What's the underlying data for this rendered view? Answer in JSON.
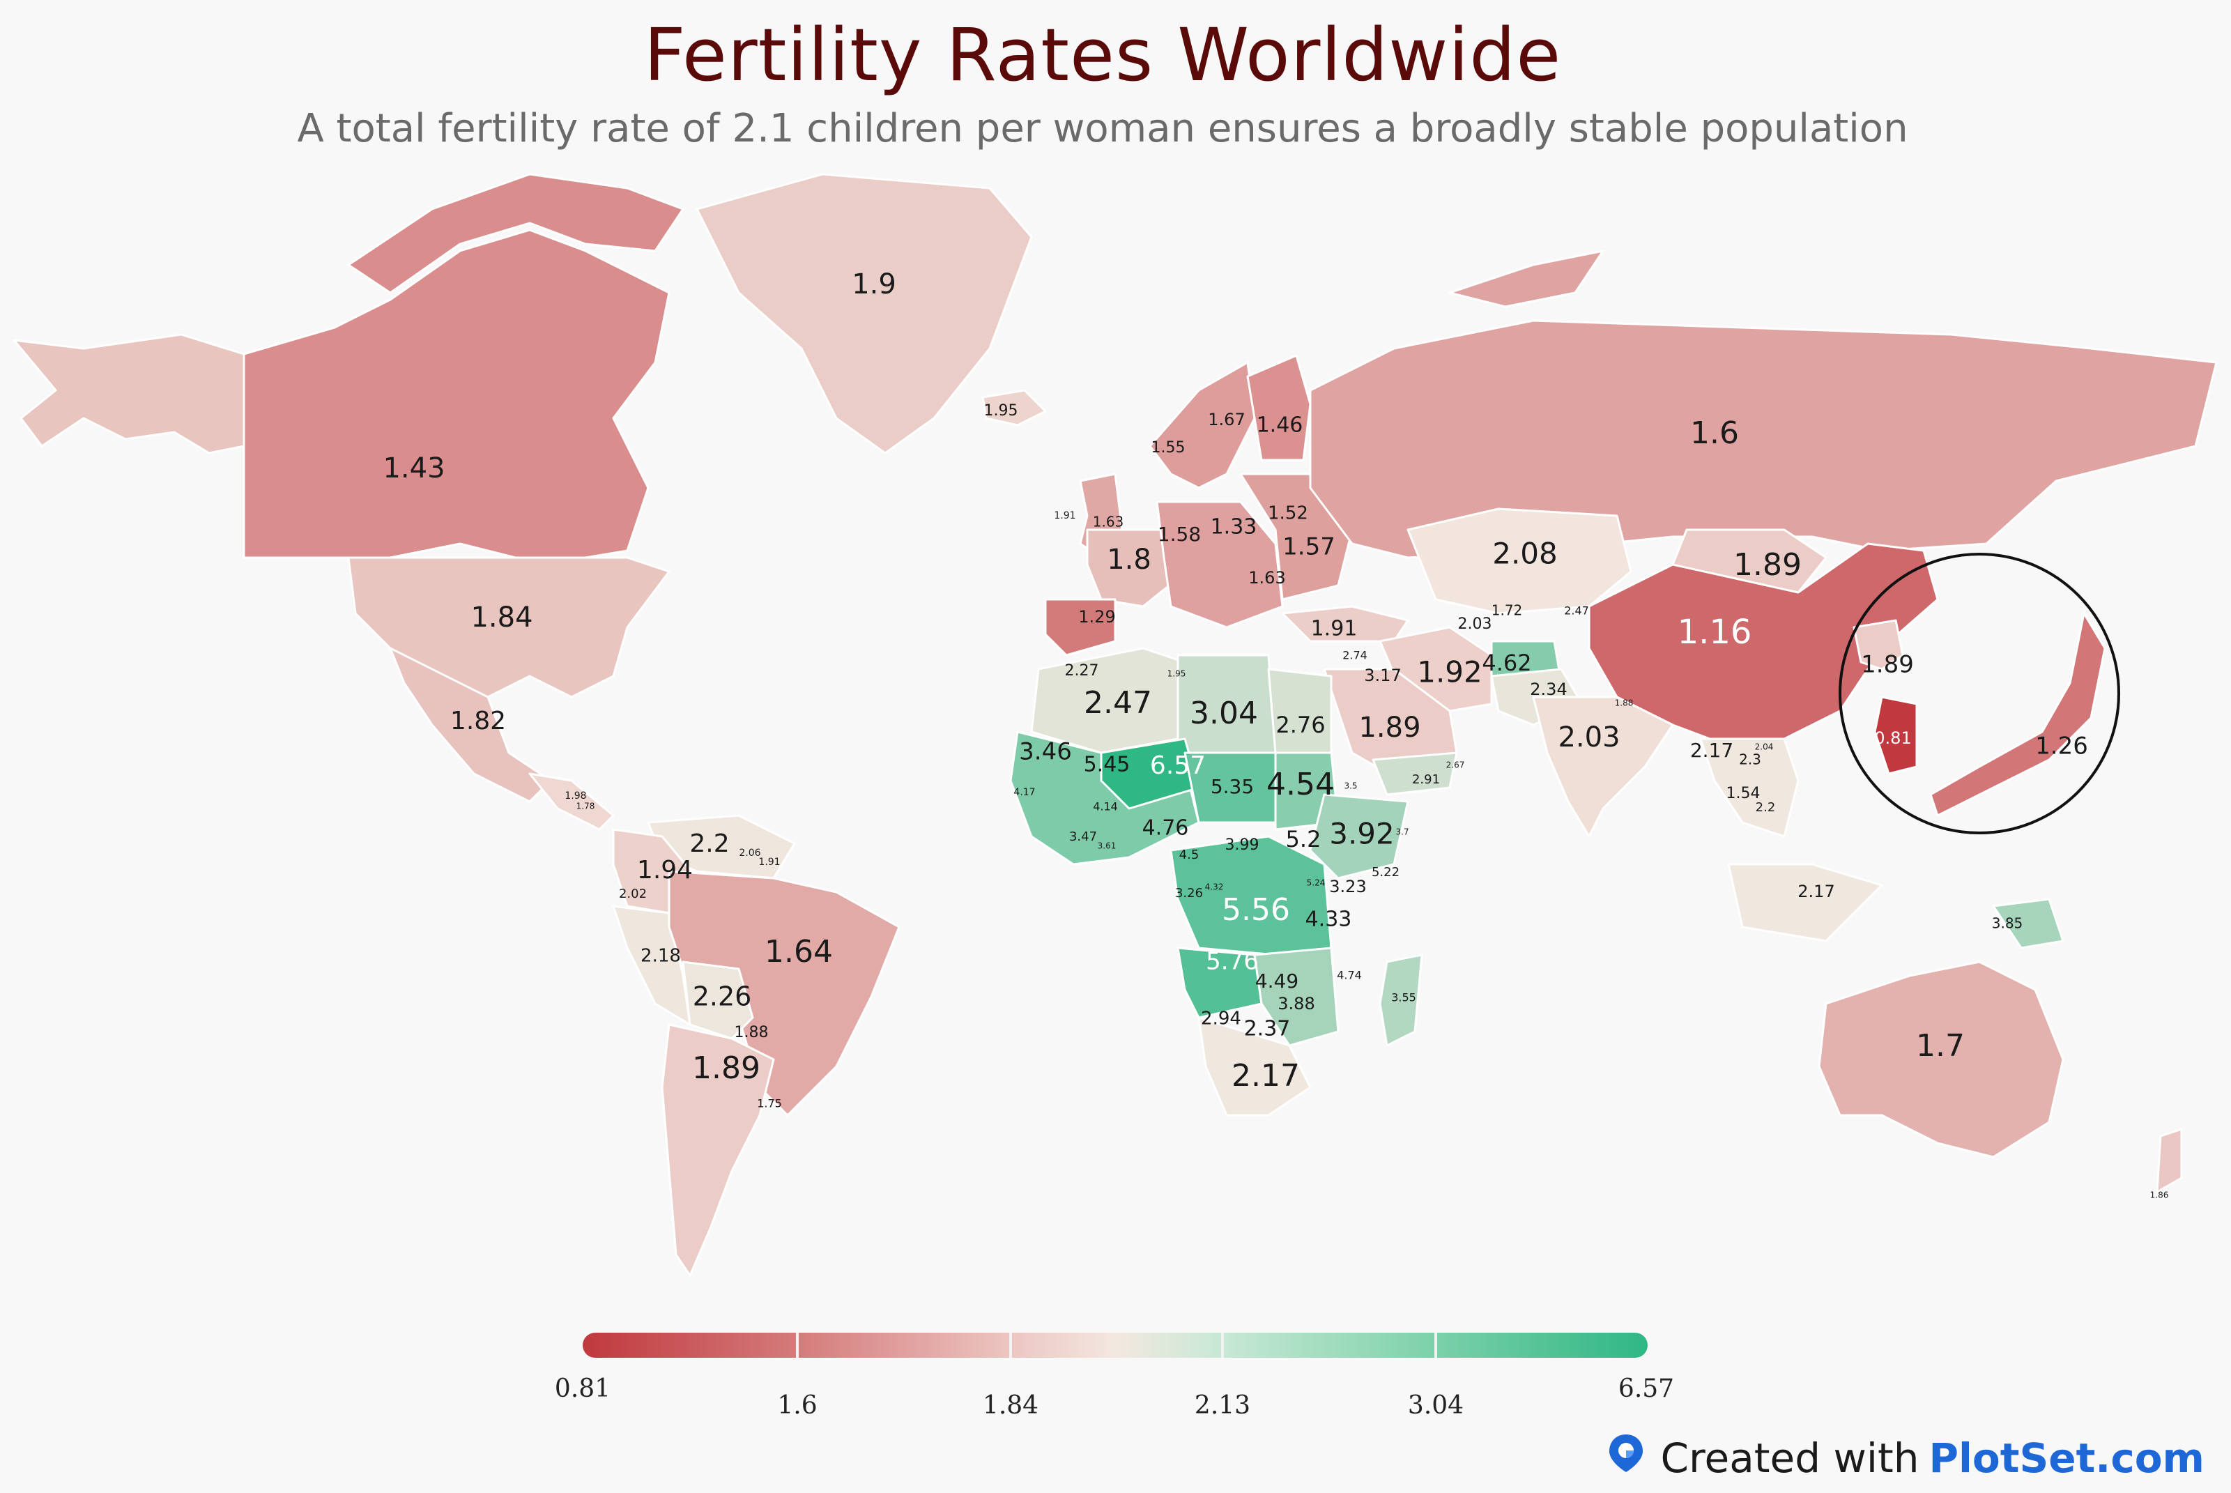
{
  "title": "Fertility Rates Worldwide",
  "subtitle": "A total fertility rate of 2.1 children per woman ensures a broadly stable population",
  "colors": {
    "low": "#c0393e",
    "mid": "#f3e8e0",
    "high": "#2fb784"
  },
  "legend": {
    "ticks": [
      "0.81",
      "1.6",
      "1.84",
      "2.13",
      "3.04",
      "6.57"
    ]
  },
  "footer": {
    "prefix": "Created with",
    "brand": "PlotSet.com",
    "icon": "plotset-logo-icon"
  },
  "regions": [
    {
      "id": "alaska",
      "value": 1.84
    },
    {
      "id": "canada",
      "value": 1.43
    },
    {
      "id": "greenland",
      "value": 1.9
    },
    {
      "id": "iceland",
      "value": 1.95
    },
    {
      "id": "usa",
      "value": 1.84
    },
    {
      "id": "mexico",
      "value": 1.82
    },
    {
      "id": "central-america",
      "value": 1.98
    },
    {
      "id": "venezuela",
      "value": 2.2
    },
    {
      "id": "colombia",
      "value": 1.94
    },
    {
      "id": "peru",
      "value": 2.18
    },
    {
      "id": "brazil",
      "value": 1.64
    },
    {
      "id": "bolivia",
      "value": 2.26
    },
    {
      "id": "argentina",
      "value": 1.89
    },
    {
      "id": "uk",
      "value": 1.63
    },
    {
      "id": "france",
      "value": 1.8
    },
    {
      "id": "spain",
      "value": 1.29
    },
    {
      "id": "scandinavia",
      "value": 1.55
    },
    {
      "id": "finland",
      "value": 1.46
    },
    {
      "id": "central-europe",
      "value": 1.58
    },
    {
      "id": "eastern-europe",
      "value": 1.57
    },
    {
      "id": "russia",
      "value": 1.6
    },
    {
      "id": "turkey",
      "value": 1.91
    },
    {
      "id": "kazakhstan",
      "value": 2.08
    },
    {
      "id": "mongolia",
      "value": 1.89
    },
    {
      "id": "china",
      "value": 1.16
    },
    {
      "id": "korea",
      "value": 1.89
    },
    {
      "id": "south-korea",
      "value": 0.81
    },
    {
      "id": "japan",
      "value": 1.26
    },
    {
      "id": "iran",
      "value": 1.92
    },
    {
      "id": "afghanistan",
      "value": 4.62
    },
    {
      "id": "pakistan",
      "value": 2.34
    },
    {
      "id": "india",
      "value": 2.03
    },
    {
      "id": "saudi-arabia",
      "value": 1.89
    },
    {
      "id": "yemen",
      "value": 2.91
    },
    {
      "id": "se-asia",
      "value": 2.17
    },
    {
      "id": "indonesia",
      "value": 2.17
    },
    {
      "id": "papua",
      "value": 3.85
    },
    {
      "id": "australia",
      "value": 1.7
    },
    {
      "id": "new-zealand",
      "value": 1.86
    },
    {
      "id": "north-africa-west",
      "value": 2.47
    },
    {
      "id": "north-africa-east",
      "value": 3.04
    },
    {
      "id": "egypt",
      "value": 2.76
    },
    {
      "id": "west-africa",
      "value": 4.76
    },
    {
      "id": "sahel",
      "value": 5.35
    },
    {
      "id": "niger",
      "value": 6.57
    },
    {
      "id": "east-africa",
      "value": 4.54
    },
    {
      "id": "horn",
      "value": 3.92
    },
    {
      "id": "congo",
      "value": 5.56
    },
    {
      "id": "angola",
      "value": 5.76
    },
    {
      "id": "southern-africa",
      "value": 2.17
    },
    {
      "id": "mozambique",
      "value": 3.88
    },
    {
      "id": "madagascar",
      "value": 3.55
    }
  ],
  "labels": [
    {
      "text": "1.9",
      "size": 40
    },
    {
      "text": "1.95",
      "size": 22
    },
    {
      "text": "1.43",
      "size": 40
    },
    {
      "text": "1.84",
      "size": 40
    },
    {
      "text": "1.82",
      "size": 36
    },
    {
      "text": "1.98",
      "size": 14
    },
    {
      "text": "1.78",
      "size": 12
    },
    {
      "text": "2.2",
      "size": 36
    },
    {
      "text": "2.06",
      "size": 14
    },
    {
      "text": "1.91",
      "size": 14
    },
    {
      "text": "1.94",
      "size": 36
    },
    {
      "text": "2.02",
      "size": 18
    },
    {
      "text": "2.18",
      "size": 26
    },
    {
      "text": "1.64",
      "size": 44
    },
    {
      "text": "2.26",
      "size": 38
    },
    {
      "text": "1.88",
      "size": 22
    },
    {
      "text": "1.89",
      "size": 44
    },
    {
      "text": "1.75",
      "size": 16
    },
    {
      "text": "1.55",
      "size": 22
    },
    {
      "text": "1.67",
      "size": 24
    },
    {
      "text": "1.46",
      "size": 30
    },
    {
      "text": "1.91",
      "size": 14
    },
    {
      "text": "1.63",
      "size": 20
    },
    {
      "text": "1.8",
      "size": 40
    },
    {
      "text": "1.29",
      "size": 24
    },
    {
      "text": "1.58",
      "size": 28
    },
    {
      "text": "1.33",
      "size": 30
    },
    {
      "text": "1.52",
      "size": 26
    },
    {
      "text": "1.57",
      "size": 34
    },
    {
      "text": "1.63",
      "size": 24
    },
    {
      "text": "1.6",
      "size": 44
    },
    {
      "text": "2.08",
      "size": 42
    },
    {
      "text": "1.89",
      "size": 44
    },
    {
      "text": "1.16",
      "size": 48
    },
    {
      "text": "1.89",
      "size": 34
    },
    {
      "text": "0.81",
      "size": 24
    },
    {
      "text": "1.26",
      "size": 34
    },
    {
      "text": "1.91",
      "size": 30
    },
    {
      "text": "2.03",
      "size": 22
    },
    {
      "text": "1.72",
      "size": 20
    },
    {
      "text": "2.47",
      "size": 16
    },
    {
      "text": "2.74",
      "size": 16
    },
    {
      "text": "3.17",
      "size": 24
    },
    {
      "text": "1.92",
      "size": 42
    },
    {
      "text": "4.62",
      "size": 32
    },
    {
      "text": "2.34",
      "size": 24
    },
    {
      "text": "2.27",
      "size": 22
    },
    {
      "text": "1.95",
      "size": 12
    },
    {
      "text": "2.47",
      "size": 44
    },
    {
      "text": "3.04",
      "size": 44
    },
    {
      "text": "2.76",
      "size": 32
    },
    {
      "text": "1.89",
      "size": 40
    },
    {
      "text": "2.91",
      "size": 18
    },
    {
      "text": "2.67",
      "size": 12
    },
    {
      "text": "2.03",
      "size": 40
    },
    {
      "text": "1.88",
      "size": 12
    },
    {
      "text": "2.17",
      "size": 28
    },
    {
      "text": "2.04",
      "size": 12
    },
    {
      "text": "2.3",
      "size": 20
    },
    {
      "text": "1.54",
      "size": 22
    },
    {
      "text": "2.2",
      "size": 18
    },
    {
      "text": "3.46",
      "size": 34
    },
    {
      "text": "5.45",
      "size": 30
    },
    {
      "text": "6.57",
      "size": 36
    },
    {
      "text": "5.35",
      "size": 28
    },
    {
      "text": "4.54",
      "size": 44
    },
    {
      "text": "3.5",
      "size": 12
    },
    {
      "text": "4.17",
      "size": 14
    },
    {
      "text": "4.14",
      "size": 16
    },
    {
      "text": "4.76",
      "size": 30
    },
    {
      "text": "3.47",
      "size": 18
    },
    {
      "text": "3.61",
      "size": 12
    },
    {
      "text": "4.5",
      "size": 18
    },
    {
      "text": "3.99",
      "size": 22
    },
    {
      "text": "5.2",
      "size": 32
    },
    {
      "text": "3.92",
      "size": 42
    },
    {
      "text": "5.22",
      "size": 18
    },
    {
      "text": "3.7",
      "size": 12
    },
    {
      "text": "3.26",
      "size": 18
    },
    {
      "text": "4.32",
      "size": 12
    },
    {
      "text": "5.56",
      "size": 44
    },
    {
      "text": "5.24",
      "size": 12
    },
    {
      "text": "3.23",
      "size": 24
    },
    {
      "text": "4.33",
      "size": 30
    },
    {
      "text": "5.76",
      "size": 34
    },
    {
      "text": "4.49",
      "size": 28
    },
    {
      "text": "4.74",
      "size": 16
    },
    {
      "text": "3.88",
      "size": 24
    },
    {
      "text": "3.55",
      "size": 16
    },
    {
      "text": "2.94",
      "size": 26
    },
    {
      "text": "2.37",
      "size": 30
    },
    {
      "text": "2.17",
      "size": 44
    },
    {
      "text": "2.17",
      "size": 24
    },
    {
      "text": "3.85",
      "size": 20
    },
    {
      "text": "1.7",
      "size": 44
    },
    {
      "text": "1.86",
      "size": 12
    }
  ]
}
